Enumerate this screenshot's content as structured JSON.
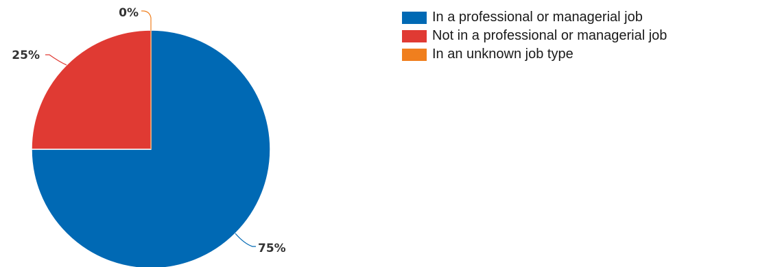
{
  "chart_data": {
    "type": "pie",
    "categories": [
      "In a professional or managerial job",
      "Not in a professional or managerial job",
      "In an unknown job type"
    ],
    "values": [
      75,
      25,
      0
    ],
    "labels": [
      "75%",
      "25%",
      "0%"
    ],
    "colors": [
      "#0069b4",
      "#e03a33",
      "#f07f1e"
    ],
    "legend_position": "right",
    "start_angle": "12 o'clock, clockwise"
  }
}
